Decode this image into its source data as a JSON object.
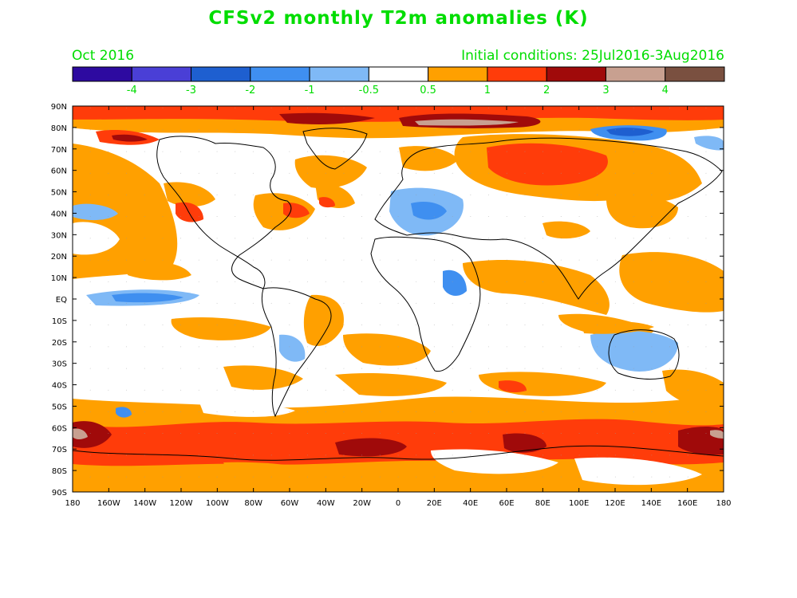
{
  "title": "CFSv2 monthly T2m anomalies (K)",
  "valid_month": "Oct 2016",
  "initial_conditions": "Initial conditions: 25Jul2016-3Aug2016",
  "colorbar": {
    "bins": [
      {
        "color": "#2d0aa0"
      },
      {
        "color": "#4a3fd6"
      },
      {
        "color": "#1e5fd0"
      },
      {
        "color": "#3f8ff0"
      },
      {
        "color": "#7fb9f6"
      },
      {
        "color": "#ffffff"
      },
      {
        "color": "#ffa000"
      },
      {
        "color": "#ff3c0a"
      },
      {
        "color": "#a00a0a"
      },
      {
        "color": "#c8a090"
      },
      {
        "color": "#7a5040"
      }
    ],
    "labels": [
      "-4",
      "-3",
      "-2",
      "-1",
      "-0.5",
      "0.5",
      "1",
      "2",
      "3",
      "4"
    ]
  },
  "lat_labels": [
    "90N",
    "80N",
    "70N",
    "60N",
    "50N",
    "40N",
    "30N",
    "20N",
    "10N",
    "EQ",
    "10S",
    "20S",
    "30S",
    "40S",
    "50S",
    "60S",
    "70S",
    "80S",
    "90S"
  ],
  "lon_labels": [
    "180",
    "160W",
    "140W",
    "120W",
    "100W",
    "80W",
    "60W",
    "40W",
    "20W",
    "0",
    "20E",
    "40E",
    "60E",
    "80E",
    "100E",
    "120E",
    "140E",
    "160E",
    "180"
  ],
  "colors": {
    "label_green": "#00dd00",
    "frame": "#000000"
  }
}
